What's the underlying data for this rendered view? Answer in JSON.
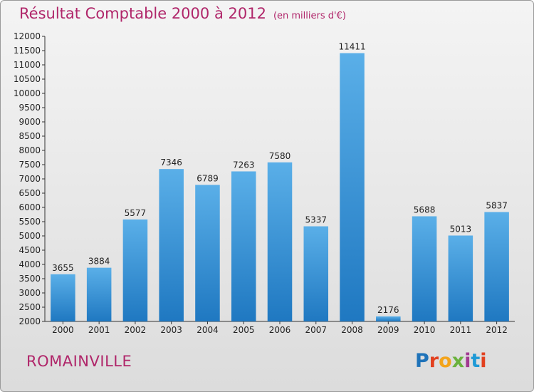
{
  "header": {
    "title": "Résultat Comptable 2000 à 2012",
    "subtitle": "(en milliers d'€)"
  },
  "footer": {
    "city": "ROMAINVILLE",
    "logo_letters": [
      "P",
      "r",
      "o",
      "x",
      "i",
      "t",
      "i"
    ]
  },
  "colors": {
    "accent": "#b0266a",
    "bar_top": "#5aafe8",
    "bar_bottom": "#1f78c1"
  },
  "chart_data": {
    "type": "bar",
    "title": "Résultat Comptable 2000 à 2012",
    "subtitle": "(en milliers d'€)",
    "categories": [
      "2000",
      "2001",
      "2002",
      "2003",
      "2004",
      "2005",
      "2006",
      "2007",
      "2008",
      "2009",
      "2010",
      "2011",
      "2012"
    ],
    "values": [
      3655,
      3884,
      5577,
      7346,
      6789,
      7263,
      7580,
      5337,
      11411,
      2176,
      5688,
      5013,
      5837
    ],
    "ylim": [
      2000,
      12000
    ],
    "ytick_step": 500,
    "grid": false,
    "legend": "none"
  }
}
